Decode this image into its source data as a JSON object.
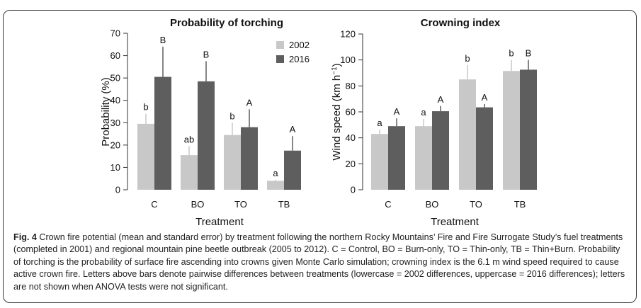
{
  "chart_data": [
    {
      "type": "bar",
      "title": "Probability of torching",
      "xlabel": "Treatment",
      "ylabel": "Probability (%)",
      "categories": [
        "C",
        "BO",
        "TO",
        "TB"
      ],
      "ylim": [
        0,
        70
      ],
      "yticks": [
        0,
        10,
        20,
        30,
        40,
        50,
        60,
        70
      ],
      "legend_position": "top-right",
      "series": [
        {
          "name": "2002",
          "color": "#c8c8c8",
          "values": [
            29.5,
            15.5,
            24.5,
            4
          ],
          "se": [
            4.5,
            4,
            5.5,
            0.5
          ],
          "letters": [
            "b",
            "ab",
            "b",
            "a"
          ]
        },
        {
          "name": "2016",
          "color": "#5e5e5e",
          "values": [
            50.5,
            48.5,
            28,
            17.5
          ],
          "se": [
            13.5,
            9,
            8,
            6.5
          ],
          "letters": [
            "B",
            "B",
            "A",
            "A"
          ]
        }
      ]
    },
    {
      "type": "bar",
      "title": "Crowning index",
      "xlabel": "Treatment",
      "ylabel": "Wind speed (km h",
      "ylabel_sup": "−1",
      "ylabel_close": ")",
      "categories": [
        "C",
        "BO",
        "TO",
        "TB"
      ],
      "ylim": [
        0,
        120
      ],
      "yticks": [
        0,
        20,
        40,
        60,
        80,
        100,
        120
      ],
      "series": [
        {
          "name": "2002",
          "color": "#c8c8c8",
          "values": [
            43,
            49,
            85,
            91.5
          ],
          "se": [
            3.5,
            5.5,
            11,
            8.5
          ],
          "letters": [
            "a",
            "a",
            "b",
            "b"
          ]
        },
        {
          "name": "2016",
          "color": "#5e5e5e",
          "values": [
            49,
            60.5,
            63.5,
            92.5
          ],
          "se": [
            6,
            4,
            2.5,
            7.5
          ],
          "letters": [
            "A",
            "A",
            "A",
            "B"
          ]
        }
      ]
    }
  ],
  "caption": {
    "label": "Fig. 4",
    "text": " Crown fire potential (mean and standard error) by treatment following the northern Rocky Mountains’ Fire and Fire Surrogate Study’s fuel treatments (completed in 2001) and regional mountain pine beetle outbreak (2005 to 2012). C = Control, BO = Burn-only, TO = Thin-only, TB = Thin+Burn. Probability of torching is the probability of surface fire ascending into crowns given Monte Carlo simulation; crowning index is the 6.1 m wind speed required to cause active crown fire. Letters above bars denote pairwise differences between treatments (lowercase = 2002 differences, uppercase = 2016 differences); letters are not shown when ANOVA tests were not significant."
  }
}
